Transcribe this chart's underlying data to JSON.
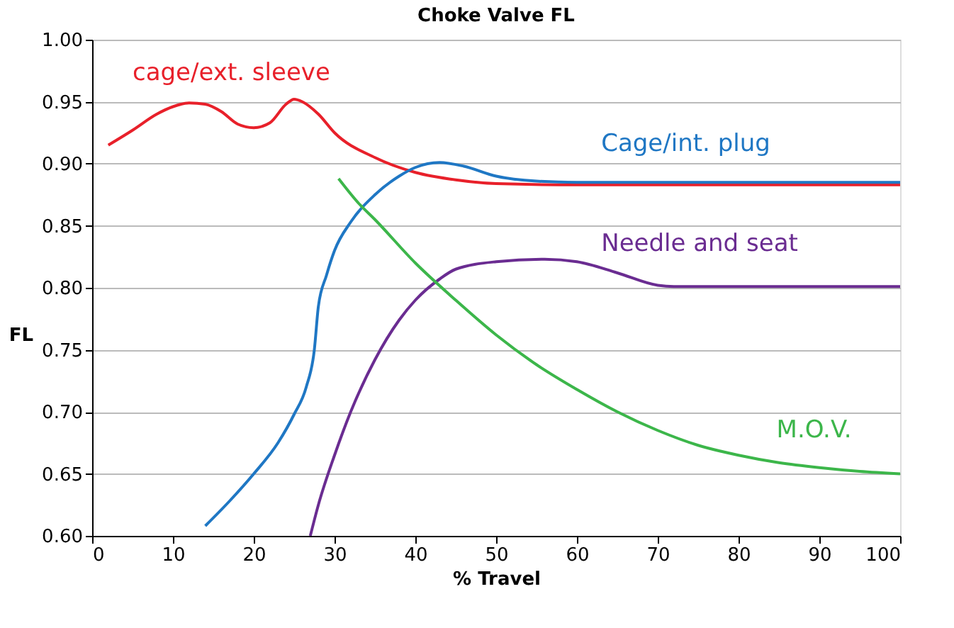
{
  "chart_data": {
    "type": "line",
    "title": "Choke Valve FL",
    "xlabel": "% Travel",
    "ylabel": "FL",
    "xlim": [
      0,
      100
    ],
    "xticks": [
      0,
      10,
      20,
      30,
      40,
      50,
      60,
      70,
      80,
      90,
      100
    ],
    "ylim": [
      0.6,
      1.0
    ],
    "yticks": [
      {
        "value": 0.6,
        "label": "0.60"
      },
      {
        "value": 0.65,
        "label": "0.65"
      },
      {
        "value": 0.7,
        "label": "0.70"
      },
      {
        "value": 0.75,
        "label": "0.75"
      },
      {
        "value": 0.8,
        "label": "0.80"
      },
      {
        "value": 0.85,
        "label": "0.85"
      },
      {
        "value": 0.9,
        "label": "0.90"
      },
      {
        "value": 0.95,
        "label": "0.95"
      },
      {
        "value": 1.0,
        "label": "1.00"
      }
    ],
    "grid": "y",
    "legend": false,
    "line_style": "solid",
    "marker": "none",
    "series": [
      {
        "name": "cage/ext. sleeve",
        "color": "#e8202a",
        "x": [
          2,
          5,
          8,
          10,
          12,
          14,
          16,
          18,
          20,
          22,
          24,
          25,
          26,
          28,
          30,
          35,
          40,
          45,
          50,
          60,
          70,
          80,
          90,
          100
        ],
        "values": [
          0.915,
          0.927,
          0.94,
          0.946,
          0.949,
          0.948,
          0.942,
          0.932,
          0.929,
          0.933,
          0.948,
          0.952,
          0.95,
          0.94,
          0.925,
          0.905,
          0.893,
          0.887,
          0.884,
          0.883,
          0.883,
          0.883,
          0.883,
          0.883
        ]
      },
      {
        "name": "Cage/int. plug",
        "color": "#1f77c4",
        "x": [
          14,
          17,
          20,
          23,
          25,
          26.5,
          27.5,
          28,
          29,
          30,
          32,
          35,
          38,
          40,
          43,
          46,
          50,
          55,
          60,
          70,
          80,
          90,
          100
        ],
        "values": [
          0.608,
          0.628,
          0.65,
          0.675,
          0.698,
          0.72,
          0.75,
          0.785,
          0.81,
          0.83,
          0.853,
          0.875,
          0.89,
          0.897,
          0.901,
          0.898,
          0.89,
          0.886,
          0.885,
          0.885,
          0.885,
          0.885,
          0.885
        ]
      },
      {
        "name": "Needle and seat",
        "color": "#6a2c91",
        "x": [
          27,
          28,
          30,
          32,
          35,
          38,
          40,
          43,
          45,
          50,
          56,
          60,
          65,
          70,
          72,
          80,
          90,
          100
        ],
        "values": [
          0.6,
          0.625,
          0.665,
          0.7,
          0.742,
          0.774,
          0.79,
          0.807,
          0.815,
          0.821,
          0.823,
          0.821,
          0.812,
          0.802,
          0.801,
          0.801,
          0.801,
          0.801
        ]
      },
      {
        "name": "M.O.V.",
        "color": "#3cb64a",
        "x": [
          30.5,
          33,
          35,
          40,
          45,
          50,
          55,
          60,
          65,
          70,
          75,
          80,
          85,
          90,
          95,
          100
        ],
        "values": [
          0.888,
          0.868,
          0.855,
          0.82,
          0.79,
          0.762,
          0.738,
          0.718,
          0.7,
          0.685,
          0.673,
          0.665,
          0.659,
          0.655,
          0.652,
          0.65
        ]
      }
    ]
  }
}
